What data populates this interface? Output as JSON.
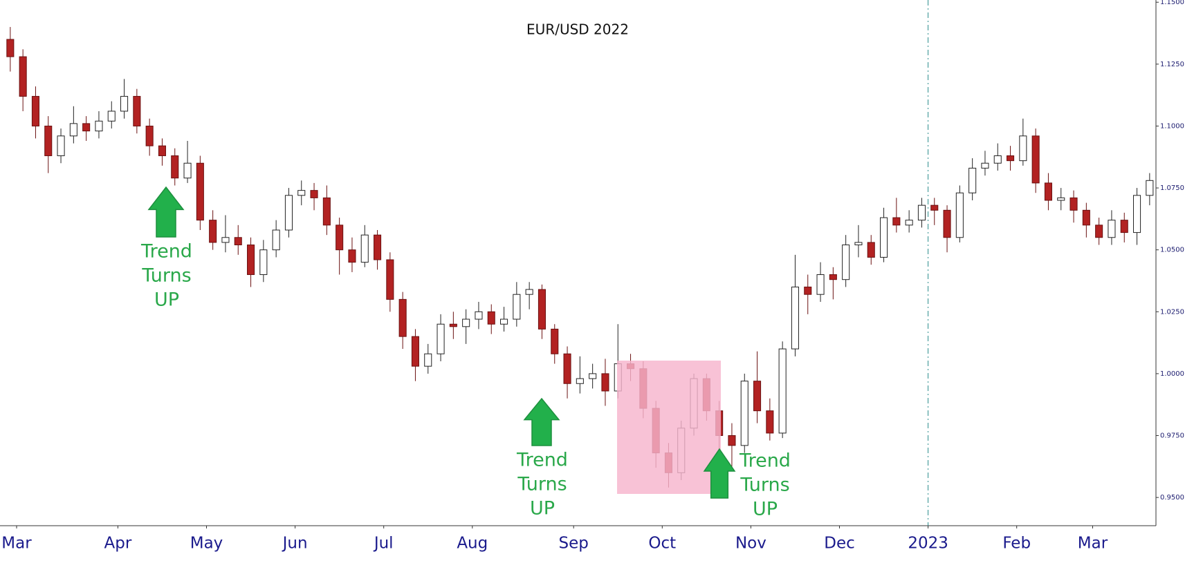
{
  "chart_data": {
    "type": "candlestick",
    "title": "EUR/USD 2022",
    "categories": [
      null,
      "Mar",
      null,
      null,
      null,
      null,
      null,
      null,
      null,
      "Apr",
      null,
      null,
      null,
      null,
      null,
      null,
      "May",
      null,
      null,
      null,
      null,
      null,
      null,
      "Jun",
      null,
      null,
      null,
      null,
      null,
      null,
      "Jul",
      null,
      null,
      null,
      null,
      null,
      null,
      "Aug",
      null,
      null,
      null,
      null,
      null,
      null,
      null,
      "Sep",
      null,
      null,
      null,
      null,
      null,
      null,
      "Oct",
      null,
      null,
      null,
      null,
      null,
      null,
      "Nov",
      null,
      null,
      null,
      null,
      null,
      null,
      "Dec",
      null,
      null,
      null,
      null,
      null,
      null,
      "2023",
      null,
      null,
      null,
      null,
      null,
      null,
      "Feb",
      null,
      null,
      null,
      null,
      null,
      "Mar",
      null,
      null,
      null,
      null
    ],
    "open": [
      1.135,
      1.128,
      1.112,
      1.1,
      1.088,
      1.096,
      1.101,
      1.098,
      1.102,
      1.106,
      1.112,
      1.1,
      1.092,
      1.088,
      1.079,
      1.085,
      1.062,
      1.053,
      1.055,
      1.052,
      1.04,
      1.05,
      1.058,
      1.072,
      1.074,
      1.071,
      1.06,
      1.05,
      1.045,
      1.056,
      1.046,
      1.03,
      1.015,
      1.003,
      1.008,
      1.02,
      1.019,
      1.022,
      1.025,
      1.02,
      1.022,
      1.032,
      1.034,
      1.018,
      1.008,
      0.996,
      0.998,
      1.0,
      0.993,
      1.004,
      1.002,
      0.986,
      0.968,
      0.96,
      0.978,
      0.998,
      0.985,
      0.975,
      0.971,
      0.997,
      0.985,
      0.976,
      1.01,
      1.035,
      1.032,
      1.04,
      1.038,
      1.052,
      1.053,
      1.047,
      1.063,
      1.06,
      1.062,
      1.068,
      1.066,
      1.055,
      1.073,
      1.083,
      1.085,
      1.088,
      1.086,
      1.096,
      1.077,
      1.07,
      1.071,
      1.066,
      1.06,
      1.055,
      1.062,
      1.057,
      1.072
    ],
    "high": [
      1.14,
      1.131,
      1.116,
      1.104,
      1.099,
      1.108,
      1.104,
      1.106,
      1.11,
      1.119,
      1.115,
      1.103,
      1.095,
      1.091,
      1.094,
      1.088,
      1.066,
      1.064,
      1.06,
      1.055,
      1.054,
      1.062,
      1.075,
      1.078,
      1.077,
      1.076,
      1.063,
      1.055,
      1.06,
      1.058,
      1.049,
      1.033,
      1.018,
      1.012,
      1.024,
      1.025,
      1.026,
      1.029,
      1.028,
      1.027,
      1.037,
      1.037,
      1.036,
      1.02,
      1.011,
      1.007,
      1.004,
      1.006,
      1.02,
      1.008,
      1.005,
      0.989,
      0.972,
      0.981,
      1.0,
      1.0,
      0.989,
      0.98,
      1.0,
      1.009,
      0.99,
      1.013,
      1.048,
      1.04,
      1.045,
      1.043,
      1.056,
      1.06,
      1.056,
      1.067,
      1.071,
      1.066,
      1.071,
      1.071,
      1.068,
      1.076,
      1.087,
      1.09,
      1.093,
      1.092,
      1.103,
      1.099,
      1.081,
      1.075,
      1.074,
      1.069,
      1.063,
      1.066,
      1.065,
      1.075,
      1.081
    ],
    "low": [
      1.122,
      1.106,
      1.095,
      1.081,
      1.085,
      1.093,
      1.094,
      1.095,
      1.099,
      1.103,
      1.097,
      1.088,
      1.084,
      1.076,
      1.077,
      1.058,
      1.05,
      1.049,
      1.048,
      1.035,
      1.037,
      1.047,
      1.055,
      1.068,
      1.066,
      1.056,
      1.04,
      1.041,
      1.043,
      1.042,
      1.025,
      1.01,
      0.997,
      1.0,
      1.005,
      1.014,
      1.012,
      1.018,
      1.016,
      1.017,
      1.019,
      1.026,
      1.014,
      1.004,
      0.99,
      0.992,
      0.994,
      0.987,
      0.99,
      0.997,
      0.982,
      0.962,
      0.954,
      0.957,
      0.975,
      0.981,
      0.968,
      0.962,
      0.968,
      0.98,
      0.973,
      0.974,
      1.007,
      1.024,
      1.029,
      1.03,
      1.035,
      1.047,
      1.044,
      1.045,
      1.057,
      1.057,
      1.059,
      1.06,
      1.049,
      1.053,
      1.07,
      1.08,
      1.082,
      1.082,
      1.084,
      1.073,
      1.066,
      1.066,
      1.061,
      1.055,
      1.052,
      1.052,
      1.053,
      1.052,
      1.068
    ],
    "close": [
      1.128,
      1.112,
      1.1,
      1.088,
      1.096,
      1.101,
      1.098,
      1.102,
      1.106,
      1.112,
      1.1,
      1.092,
      1.088,
      1.079,
      1.085,
      1.062,
      1.053,
      1.055,
      1.052,
      1.04,
      1.05,
      1.058,
      1.072,
      1.074,
      1.071,
      1.06,
      1.05,
      1.045,
      1.056,
      1.046,
      1.03,
      1.015,
      1.003,
      1.008,
      1.02,
      1.019,
      1.022,
      1.025,
      1.02,
      1.022,
      1.032,
      1.034,
      1.018,
      1.008,
      0.996,
      0.998,
      1.0,
      0.993,
      1.004,
      1.002,
      0.986,
      0.968,
      0.96,
      0.978,
      0.998,
      0.985,
      0.975,
      0.971,
      0.997,
      0.985,
      0.976,
      1.01,
      1.035,
      1.032,
      1.04,
      1.038,
      1.052,
      1.053,
      1.047,
      1.063,
      1.06,
      1.062,
      1.068,
      1.066,
      1.055,
      1.073,
      1.083,
      1.085,
      1.088,
      1.086,
      1.096,
      1.077,
      1.07,
      1.071,
      1.066,
      1.06,
      1.055,
      1.062,
      1.057,
      1.072,
      1.078
    ],
    "up_color": "#ffffff",
    "down_color": "#b22222",
    "ylim": [
      0.9386,
      1.1509
    ],
    "yticks": [
      {
        "value": 0.95,
        "label": "0.9500"
      },
      {
        "value": 0.975,
        "label": "0.9750"
      },
      {
        "value": 1.0,
        "label": "1.0000"
      },
      {
        "value": 1.025,
        "label": "1.0250"
      },
      {
        "value": 1.05,
        "label": "1.0500"
      },
      {
        "value": 1.075,
        "label": "1.0750"
      },
      {
        "value": 1.1,
        "label": "1.1000"
      },
      {
        "value": 1.125,
        "label": "1.1250"
      },
      {
        "value": 1.15,
        "label": "1.1500"
      }
    ],
    "annotations": [
      [
        "Trend",
        "Turns",
        "UP"
      ],
      [
        "Trend",
        "Turns",
        "UP"
      ],
      [
        "Trend",
        "Turns",
        "UP"
      ]
    ]
  }
}
